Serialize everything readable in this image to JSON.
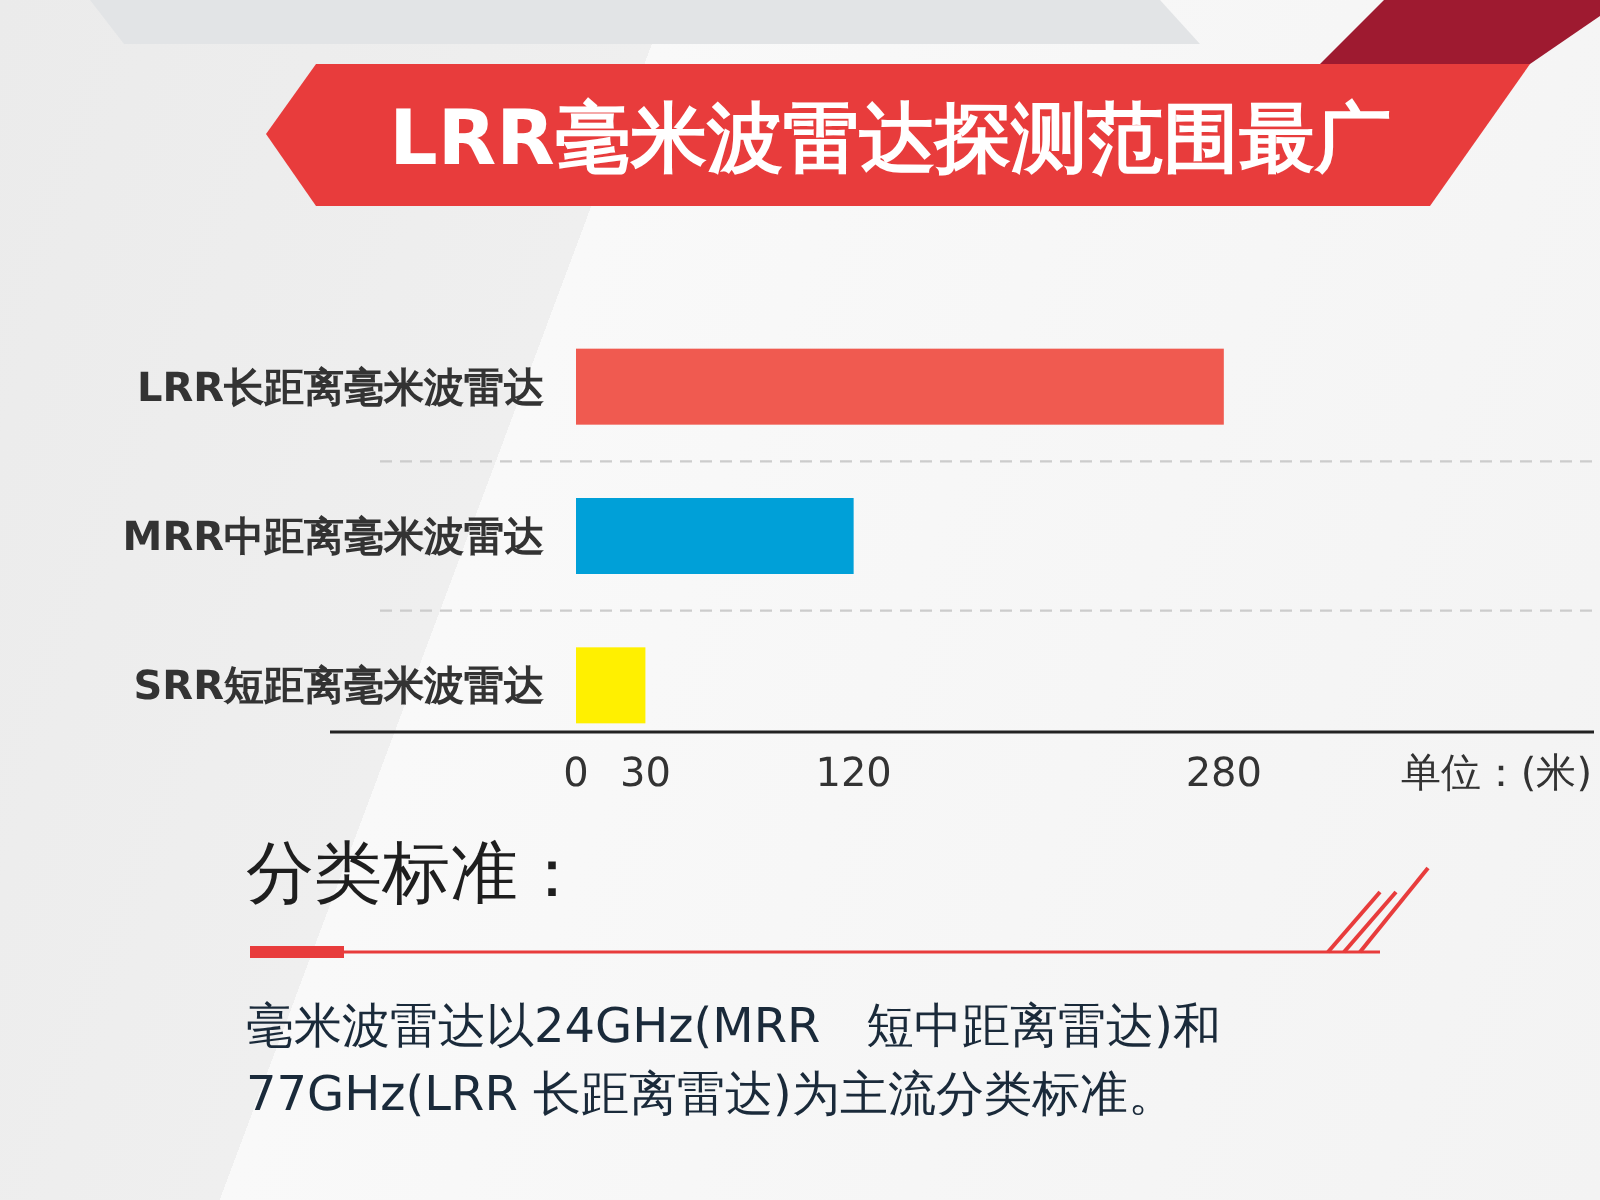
{
  "chart_data": {
    "type": "bar",
    "orientation": "horizontal",
    "title": "LRR毫米波雷达探测范围最广",
    "categories": [
      "LRR长距离毫米波雷达",
      "MRR中距离毫米波雷达",
      "SRR短距离毫米波雷达"
    ],
    "values": [
      280,
      120,
      30
    ],
    "colors": [
      "#f05a50",
      "#00a0d8",
      "#fff000"
    ],
    "xlim": [
      0,
      440
    ],
    "xticks": [
      0,
      30,
      120,
      280
    ],
    "xlabel": "单位：(米)",
    "grid": "y",
    "annotations": [
      "分类标准：",
      "毫米波雷达以24GHz(MRR   短中距离雷达)和77GHz(LRR 长距离雷达)为主流分类标准。"
    ]
  }
}
